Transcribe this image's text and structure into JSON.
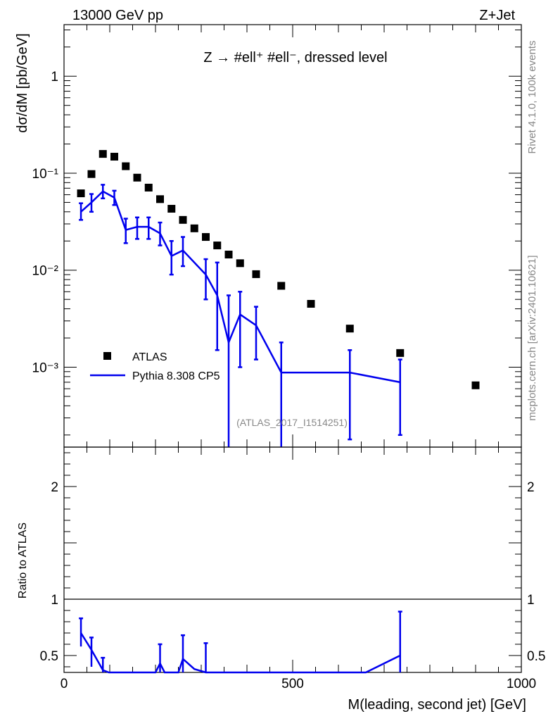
{
  "header": {
    "left": "13000 GeV pp",
    "right": "Z+Jet",
    "process": "Z → #ell⁺ #ell⁻, dressed level",
    "analysis_tag": "(ATLAS_2017_I1514251)"
  },
  "side_text": {
    "top": "Rivet 4.1.0,  100k events",
    "bottom": "mcplots.cern.ch [arXiv:2401.10621]"
  },
  "chart_data": [
    {
      "type": "scatter",
      "panel": "main",
      "ylabel": "dσ/dM [pb/GeV]",
      "yscale": "log",
      "ylim": [
        0.00015,
        3.4
      ],
      "xlim": [
        0,
        1000
      ],
      "ytick_labels": [
        "1",
        "10⁻¹",
        "10⁻²",
        "10⁻³"
      ],
      "legend": {
        "placement": "bottom-left",
        "entries": [
          "ATLAS",
          "Pythia 8.308 CP5"
        ]
      },
      "series": [
        {
          "name": "ATLAS",
          "marker": "square",
          "color": "#000000",
          "x": [
            37,
            60,
            85,
            110,
            135,
            160,
            185,
            210,
            235,
            260,
            285,
            310,
            335,
            360,
            385,
            420,
            475,
            540,
            625,
            735,
            900
          ],
          "y": [
            0.062,
            0.098,
            0.158,
            0.148,
            0.118,
            0.09,
            0.071,
            0.054,
            0.043,
            0.033,
            0.027,
            0.022,
            0.018,
            0.0145,
            0.0118,
            0.0091,
            0.0069,
            0.0045,
            0.0025,
            0.0014,
            0.00065
          ]
        },
        {
          "name": "Pythia 8.308 CP5",
          "marker": "line",
          "color": "#0000ee",
          "x": [
            37,
            60,
            85,
            110,
            135,
            160,
            185,
            210,
            235,
            260,
            310,
            335,
            360,
            385,
            420,
            475,
            625,
            735
          ],
          "y": [
            0.04,
            0.05,
            0.065,
            0.056,
            0.026,
            0.028,
            0.028,
            0.024,
            0.014,
            0.016,
            0.009,
            0.0055,
            0.0018,
            0.0035,
            0.0027,
            0.00088,
            0.00088,
            0.0007
          ],
          "yerr_low": [
            0.033,
            0.04,
            0.055,
            0.047,
            0.019,
            0.021,
            0.021,
            0.018,
            0.009,
            0.011,
            0.005,
            0.0015,
            0.0001,
            0.001,
            0.0012,
            0.0001,
            0.00018,
            0.0002
          ],
          "yerr_high": [
            0.049,
            0.061,
            0.076,
            0.066,
            0.034,
            0.035,
            0.035,
            0.031,
            0.02,
            0.022,
            0.013,
            0.012,
            0.0055,
            0.006,
            0.0042,
            0.0018,
            0.0015,
            0.0012
          ]
        }
      ]
    },
    {
      "type": "line",
      "panel": "ratio",
      "ylabel": "Ratio to ATLAS",
      "xlabel": "M(leading, second jet) [GeV]",
      "xlim": [
        0,
        1000
      ],
      "ylim": [
        0.35,
        2.35
      ],
      "xtick_labels": [
        "0",
        "500",
        "1000"
      ],
      "ytick_labels": [
        "0.5",
        "1",
        "2"
      ],
      "reference_line": 1,
      "series": [
        {
          "name": "Pythia 8.308 CP5",
          "color": "#0000ee",
          "x": [
            37,
            60,
            85,
            98,
            200,
            210,
            220,
            250,
            260,
            285,
            310,
            660,
            735
          ],
          "y": [
            0.7,
            0.55,
            0.37,
            0.33,
            0.33,
            0.43,
            0.33,
            0.33,
            0.47,
            0.38,
            0.33,
            0.33,
            0.5
          ],
          "yerr_low": [
            0.58,
            0.4,
            0.33,
            null,
            null,
            0.33,
            null,
            null,
            0.33,
            null,
            0.33,
            null,
            0.33
          ],
          "yerr_high": [
            0.83,
            0.66,
            0.48,
            null,
            null,
            0.6,
            null,
            null,
            0.68,
            null,
            0.61,
            null,
            0.89
          ]
        }
      ]
    }
  ]
}
